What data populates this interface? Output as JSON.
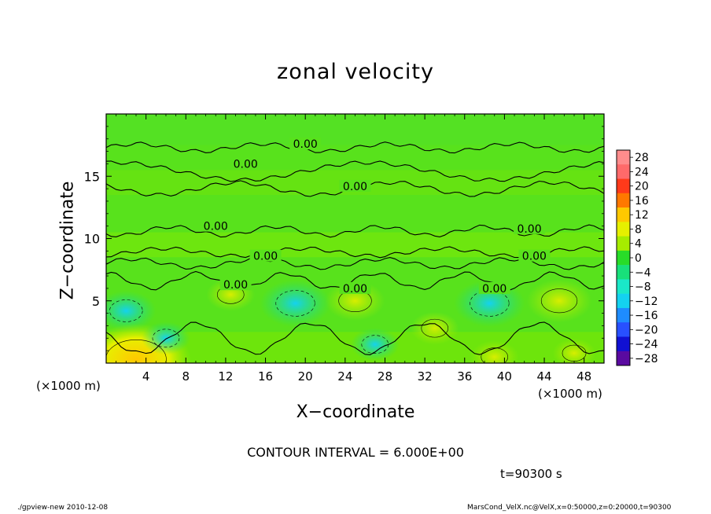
{
  "chart_data": {
    "type": "heatmap",
    "title": "zonal velocity",
    "xlabel": "X−coordinate",
    "ylabel": "Z−coordinate",
    "x_unit_label": "(×1000 m)",
    "xlim": [
      0,
      50
    ],
    "ylim": [
      0,
      20
    ],
    "x_ticks": [
      4,
      8,
      12,
      16,
      20,
      24,
      28,
      32,
      36,
      40,
      44,
      48
    ],
    "y_ticks": [
      5,
      10,
      15
    ],
    "contour_interval_text": "CONTOUR INTERVAL = 6.000E+00",
    "contour_labels": [
      "0.00",
      "0.00",
      "0.00",
      "0.00",
      "0.00",
      "0.00",
      "0.00",
      "0.00",
      "0.00",
      "0.00"
    ],
    "colorbar": {
      "labels": [
        "28",
        "24",
        "20",
        "16",
        "12",
        "8",
        "4",
        "0",
        "−4",
        "−8",
        "−12",
        "−16",
        "−20",
        "−24",
        "−28"
      ],
      "levels": [
        28,
        24,
        20,
        16,
        12,
        8,
        4,
        0,
        -4,
        -8,
        -12,
        -16,
        -20,
        -24,
        -28
      ],
      "colors": [
        "#ff8c8c",
        "#ff6a6a",
        "#ff3a1a",
        "#ff7800",
        "#ffc800",
        "#e6f000",
        "#a6ec00",
        "#28dc28",
        "#18e07a",
        "#1ae8c8",
        "#14d2f0",
        "#1e8cff",
        "#2850ff",
        "#1010d2",
        "#5a0aa0"
      ]
    },
    "anomalies": [
      {
        "x": 2.0,
        "z": 4.2,
        "value": -5,
        "kind": "low"
      },
      {
        "x": 3.0,
        "z": 0.3,
        "value": 14,
        "kind": "high"
      },
      {
        "x": 6.0,
        "z": 2.0,
        "value": -3,
        "kind": "low"
      },
      {
        "x": 12.5,
        "z": 5.5,
        "value": 3,
        "kind": "high"
      },
      {
        "x": 19.0,
        "z": 4.8,
        "value": -7,
        "kind": "low"
      },
      {
        "x": 25.0,
        "z": 5.0,
        "value": 5,
        "kind": "high"
      },
      {
        "x": 27.0,
        "z": 1.5,
        "value": -3,
        "kind": "low"
      },
      {
        "x": 33.0,
        "z": 2.8,
        "value": 3,
        "kind": "high"
      },
      {
        "x": 38.5,
        "z": 4.8,
        "value": -7,
        "kind": "low"
      },
      {
        "x": 45.5,
        "z": 5.0,
        "value": 6,
        "kind": "high"
      },
      {
        "x": 47.0,
        "z": 0.8,
        "value": 2,
        "kind": "high"
      },
      {
        "x": 39.0,
        "z": 0.5,
        "value": 3,
        "kind": "high"
      }
    ]
  },
  "annotations": {
    "time": "t=90300 s",
    "footer_left": "./gpview-new   2010-12-08",
    "footer_right": "MarsCond_VelX.nc@VelX,x=0:50000,z=0:20000,t=90300"
  }
}
